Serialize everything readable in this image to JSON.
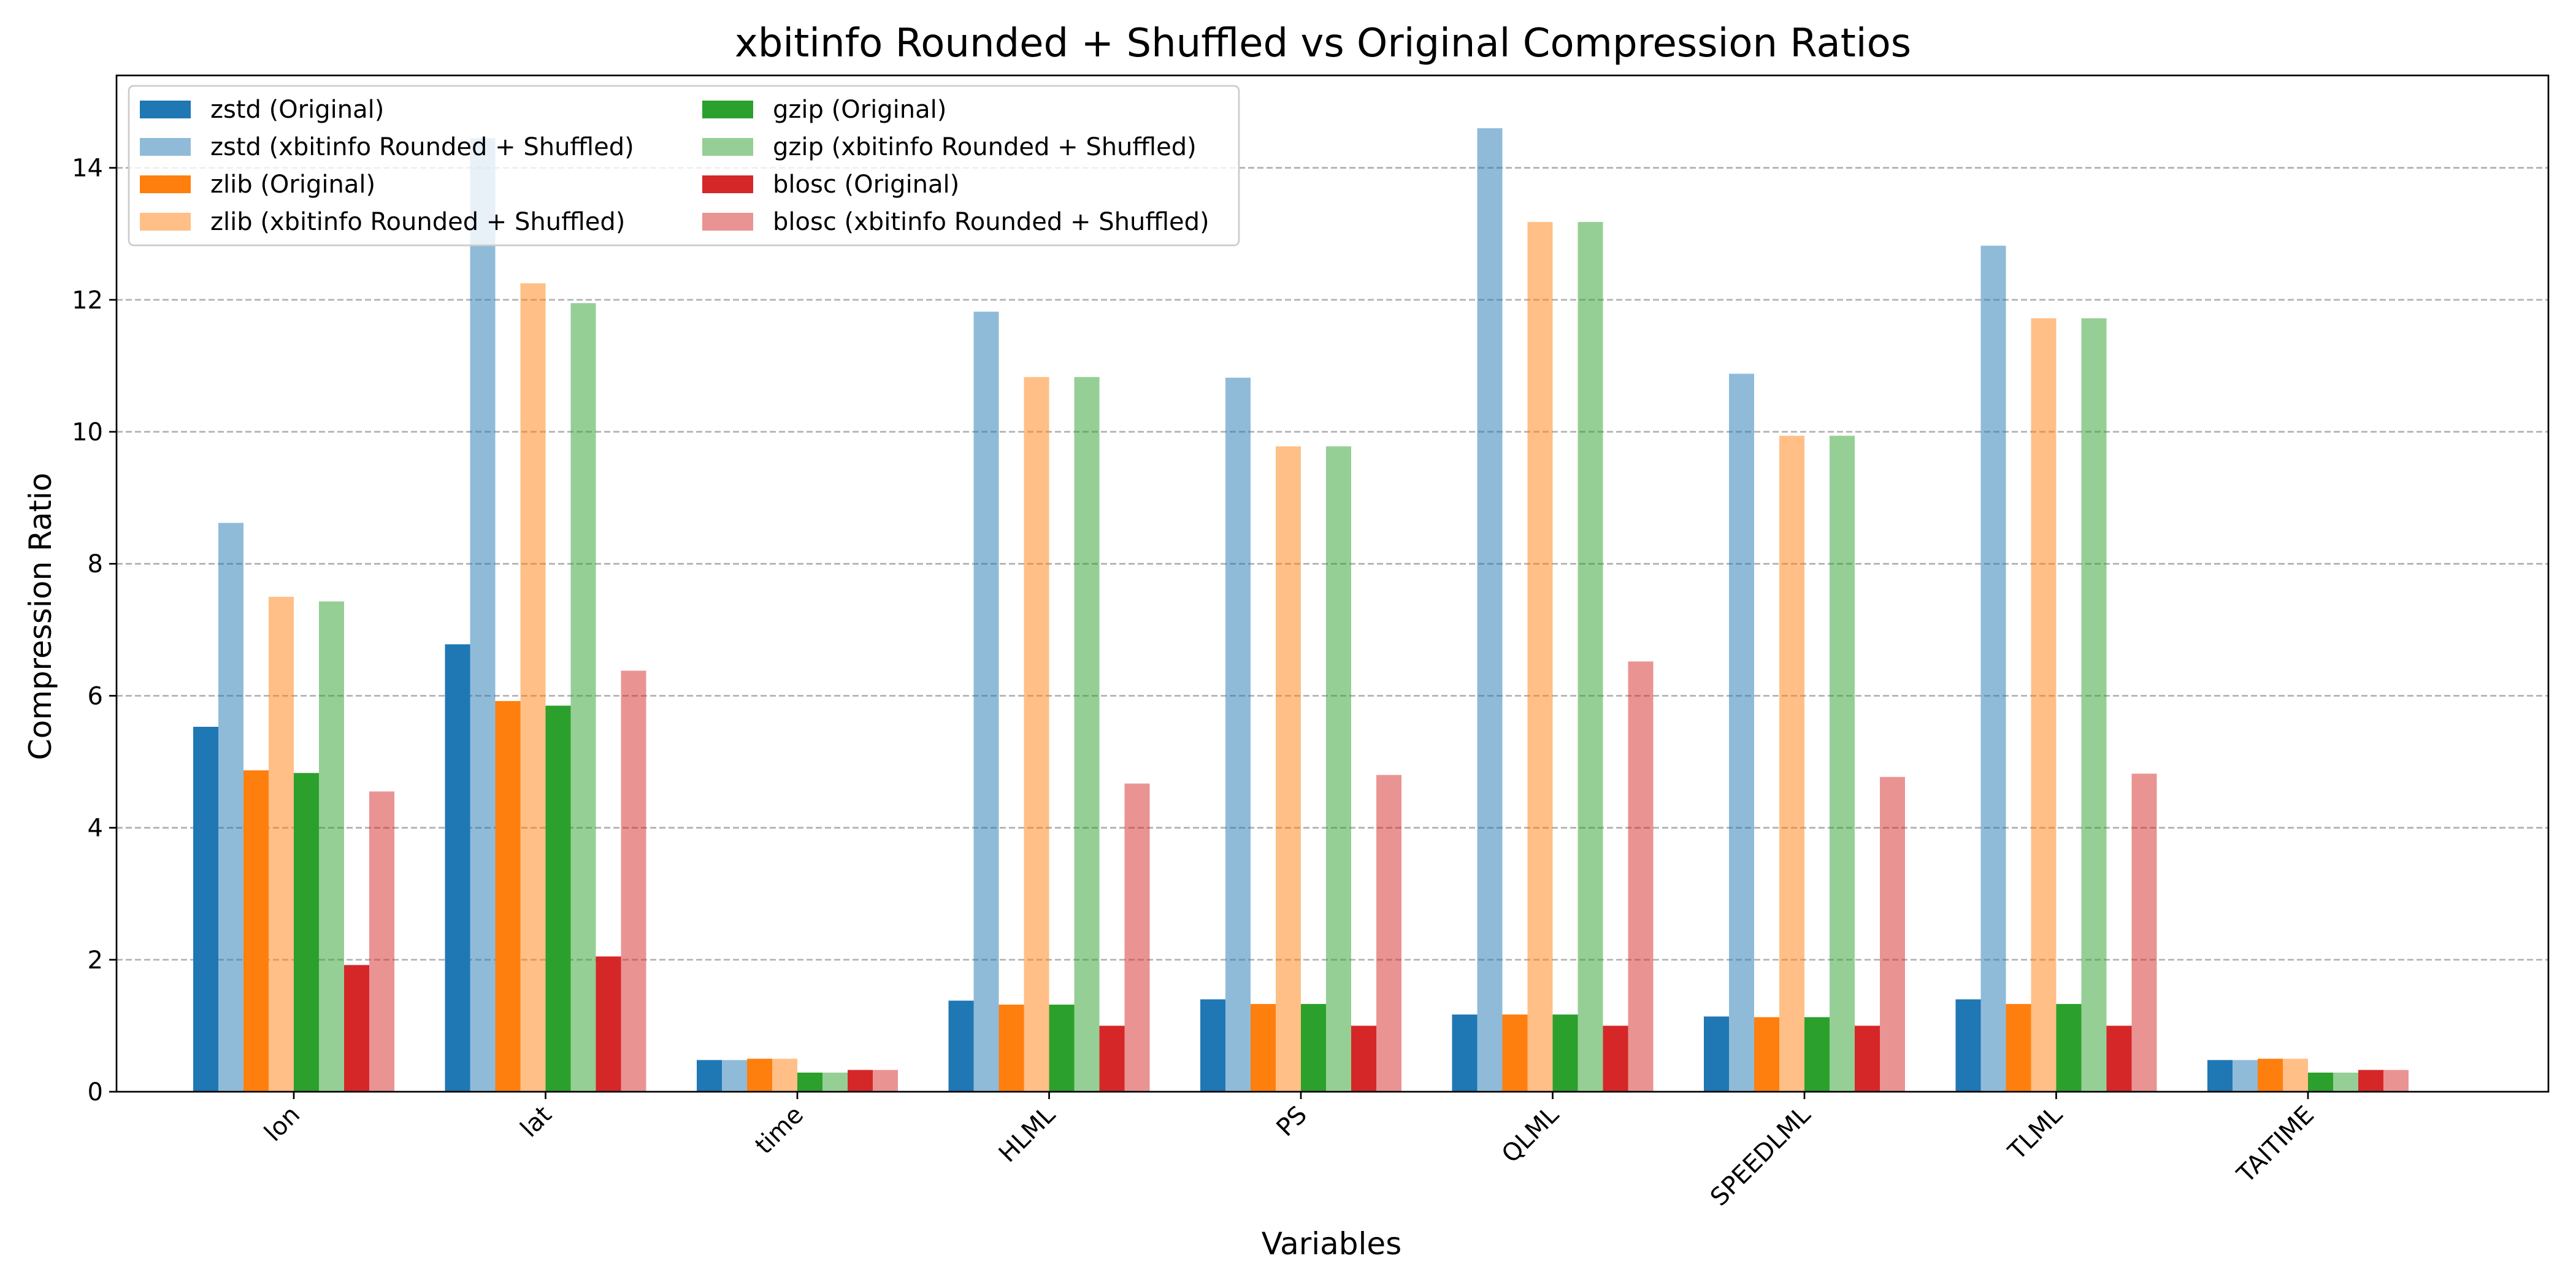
{
  "chart_data": {
    "type": "bar",
    "title": "xbitinfo Rounded + Shuffled vs Original Compression Ratios",
    "xlabel": "Variables",
    "ylabel": "Compression Ratio",
    "ylim": [
      0,
      15.4
    ],
    "yticks": [
      0,
      2,
      4,
      6,
      8,
      10,
      12,
      14
    ],
    "grid": "y-dashed",
    "legend_position": "top-left",
    "legend_columns": 2,
    "categories": [
      "lon",
      "lat",
      "time",
      "HLML",
      "PS",
      "QLML",
      "SPEEDLML",
      "TLML",
      "TAITIME"
    ],
    "series": [
      {
        "name": "zstd (Original)",
        "color": "#1f77b4",
        "alpha": 1.0,
        "values": [
          5.53,
          6.78,
          0.48,
          1.38,
          1.4,
          1.17,
          1.14,
          1.4,
          0.48
        ]
      },
      {
        "name": "zstd (xbitinfo Rounded + Shuffled)",
        "color": "#1f77b4",
        "alpha": 0.5,
        "values": [
          8.62,
          14.45,
          0.48,
          11.82,
          10.82,
          14.6,
          10.88,
          12.82,
          0.48
        ]
      },
      {
        "name": "zlib (Original)",
        "color": "#ff7f0e",
        "alpha": 1.0,
        "values": [
          4.87,
          5.92,
          0.5,
          1.32,
          1.33,
          1.17,
          1.13,
          1.33,
          0.5
        ]
      },
      {
        "name": "zlib (xbitinfo Rounded + Shuffled)",
        "color": "#ff7f0e",
        "alpha": 0.5,
        "values": [
          7.5,
          12.25,
          0.5,
          10.83,
          9.78,
          13.18,
          9.94,
          11.72,
          0.5
        ]
      },
      {
        "name": "gzip (Original)",
        "color": "#2ca02c",
        "alpha": 1.0,
        "values": [
          4.83,
          5.85,
          0.29,
          1.32,
          1.33,
          1.17,
          1.13,
          1.33,
          0.29
        ]
      },
      {
        "name": "gzip (xbitinfo Rounded + Shuffled)",
        "color": "#2ca02c",
        "alpha": 0.5,
        "values": [
          7.43,
          11.95,
          0.29,
          10.83,
          9.78,
          13.18,
          9.94,
          11.72,
          0.29
        ]
      },
      {
        "name": "blosc (Original)",
        "color": "#d62728",
        "alpha": 1.0,
        "values": [
          1.92,
          2.05,
          0.33,
          1.0,
          1.0,
          1.0,
          1.0,
          1.0,
          0.33
        ]
      },
      {
        "name": "blosc (xbitinfo Rounded + Shuffled)",
        "color": "#d62728",
        "alpha": 0.5,
        "values": [
          4.55,
          6.38,
          0.33,
          4.67,
          4.8,
          6.52,
          4.77,
          4.82,
          0.33
        ]
      }
    ]
  }
}
